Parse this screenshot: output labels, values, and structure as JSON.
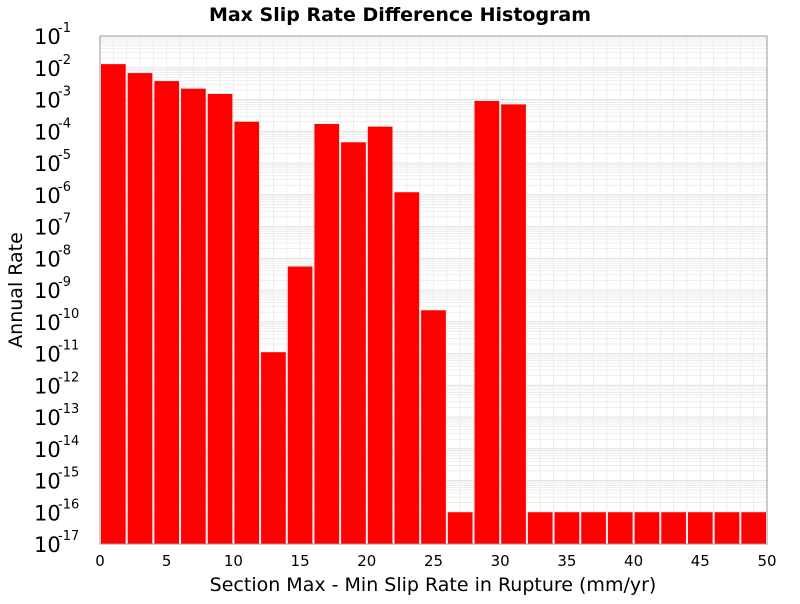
{
  "chart_data": {
    "type": "bar",
    "title": "Max Slip Rate Difference Histogram",
    "xlabel": "Section Max - Min Slip Rate in Rupture (mm/yr)",
    "ylabel": "Annual Rate",
    "x_scale": "linear",
    "y_scale": "log",
    "xlim": [
      0,
      50
    ],
    "ylim": [
      1e-17,
      0.1
    ],
    "xticks": [
      0,
      5,
      10,
      15,
      20,
      25,
      30,
      35,
      40,
      45,
      50
    ],
    "yticks": [
      {
        "base": "10",
        "exp": "-1"
      },
      {
        "base": "10",
        "exp": "-2"
      },
      {
        "base": "10",
        "exp": "-3"
      },
      {
        "base": "10",
        "exp": "-4"
      },
      {
        "base": "10",
        "exp": "-5"
      },
      {
        "base": "10",
        "exp": "-6"
      },
      {
        "base": "10",
        "exp": "-7"
      },
      {
        "base": "10",
        "exp": "-8"
      },
      {
        "base": "10",
        "exp": "-9"
      },
      {
        "base": "10",
        "exp": "-10"
      },
      {
        "base": "10",
        "exp": "-11"
      },
      {
        "base": "10",
        "exp": "-12"
      },
      {
        "base": "10",
        "exp": "-13"
      },
      {
        "base": "10",
        "exp": "-14"
      },
      {
        "base": "10",
        "exp": "-15"
      },
      {
        "base": "10",
        "exp": "-16"
      },
      {
        "base": "10",
        "exp": "-17"
      }
    ],
    "bin_width": 2,
    "x": [
      1,
      3,
      5,
      7,
      9,
      11,
      13,
      15,
      17,
      19,
      21,
      23,
      25,
      27,
      29,
      31,
      33,
      35,
      37,
      39,
      41,
      43,
      45,
      47,
      49
    ],
    "values": [
      0.013,
      0.0068,
      0.0038,
      0.0022,
      0.0015,
      0.0002,
      1.1e-11,
      5.5e-09,
      0.00017,
      4.5e-05,
      0.00014,
      1.2e-06,
      2.3e-10,
      1e-16,
      0.0009,
      0.0007,
      1e-16,
      1e-16,
      1e-16,
      1e-16,
      1e-16,
      1e-16,
      1e-16,
      1e-16,
      1e-16
    ],
    "grid": true,
    "colors": {
      "bar": "#ff0000",
      "bar_edge": "#ffffff",
      "grid": "#e4e4e4",
      "frame": "#999999"
    }
  }
}
